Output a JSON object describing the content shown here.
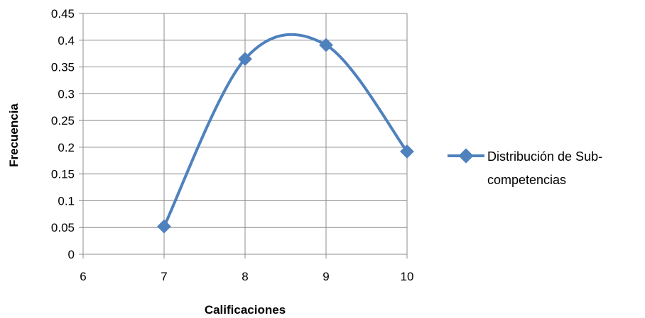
{
  "chart_data": {
    "type": "line",
    "smooth": true,
    "title": "",
    "xlabel": "Calificaciones",
    "ylabel": "Frecuencia",
    "xlim": [
      6,
      10
    ],
    "ylim": [
      0,
      0.45
    ],
    "xticks": [
      "6",
      "7",
      "8",
      "9",
      "10"
    ],
    "yticks": [
      "0",
      "0.05",
      "0.1",
      "0.15",
      "0.2",
      "0.25",
      "0.3",
      "0.35",
      "0.4",
      "0.45"
    ],
    "grid": true,
    "legend_position": "right",
    "series": [
      {
        "name": "Distribución de Sub-competencias",
        "legend_lines": [
          "Distribución de Sub-",
          "competencias"
        ],
        "color": "#4F81BD",
        "marker": "diamond",
        "x": [
          7,
          8,
          9,
          10
        ],
        "y": [
          0.052,
          0.365,
          0.391,
          0.192
        ]
      }
    ]
  }
}
